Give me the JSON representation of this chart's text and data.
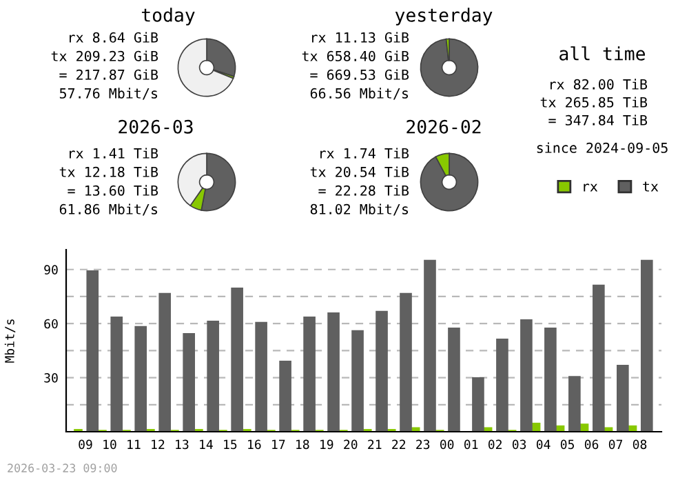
{
  "chart_data": [
    {
      "type": "donut",
      "title": "today",
      "categories": [
        "tx",
        "rx",
        null
      ],
      "values": [
        30.0,
        1.2,
        68.8
      ],
      "colors": [
        "#606060",
        "#88c800",
        "#f0f0f0"
      ],
      "legend": "right",
      "annotations": [
        "rx 8.64 GiB",
        "tx 209.23 GiB",
        "= 217.87 GiB",
        "57.76 Mbit/s"
      ]
    },
    {
      "type": "donut",
      "title": "yesterday",
      "categories": [
        null,
        null
      ],
      "values": [
        98.3,
        1.7
      ],
      "colors": [
        "#606060",
        "#88c800"
      ],
      "annotations": [
        "rx 11.13 GiB",
        "tx 658.40 GiB",
        "= 669.53 GiB",
        "66.56 Mbit/s"
      ]
    },
    {
      "type": "other",
      "title": "all time",
      "annotations": [
        "rx 82.00 TiB",
        "tx 265.85 TiB",
        "= 347.84 TiB",
        "since 2024-09-05"
      ]
    },
    {
      "type": "donut",
      "title": "2026-03",
      "categories": [
        null,
        null,
        null
      ],
      "values": [
        53.0,
        6.7,
        40.3
      ],
      "colors": [
        "#606060",
        "#88c800",
        "#f0f0f0"
      ],
      "annotations": [
        "rx 1.41 TiB",
        "tx 12.18 TiB",
        "= 13.60 TiB",
        "61.86 Mbit/s"
      ]
    },
    {
      "type": "donut",
      "title": "2026-02",
      "categories": [
        null,
        null
      ],
      "values": [
        92.2,
        7.8
      ],
      "colors": [
        "#606060",
        "#88c800"
      ],
      "annotations": [
        "rx 1.74 TiB",
        "tx 20.54 TiB",
        "= 22.28 TiB",
        "81.02 Mbit/s"
      ]
    },
    {
      "type": "bar",
      "ylabel": "Mbit/s",
      "categories": [
        "09",
        "10",
        "11",
        "12",
        "13",
        "14",
        "15",
        "16",
        "17",
        "18",
        "19",
        "20",
        "21",
        "22",
        "23",
        "00",
        "01",
        "02",
        "03",
        "04",
        "05",
        "06",
        "07",
        "08"
      ],
      "series": [
        {
          "color": "#88c800",
          "values": [
            1.5,
            1,
            1,
            1.5,
            1,
            1.5,
            1,
            1.5,
            1,
            1,
            1,
            1,
            1.5,
            1.5,
            2.5,
            1,
            0,
            2.5,
            1,
            5,
            3.5,
            4.5,
            2.5,
            3.5
          ]
        },
        {
          "color": "#606060",
          "values": [
            89.5,
            63.9,
            58.6,
            77.0,
            54.7,
            61.6,
            80.0,
            60.9,
            39.4,
            63.9,
            66.2,
            56.3,
            67.0,
            77.0,
            95.4,
            57.8,
            30.2,
            51.6,
            62.4,
            57.8,
            30.9,
            81.6,
            37.1,
            95.4
          ]
        }
      ],
      "ylim": [
        0,
        101
      ],
      "yticks": [
        {
          "value": 15,
          "label": null
        },
        30,
        {
          "value": 45,
          "label": null
        },
        60,
        {
          "value": 75,
          "label": null
        },
        90
      ],
      "grid": "y",
      "annotations": [
        "2026-03-23 09:00"
      ]
    }
  ]
}
